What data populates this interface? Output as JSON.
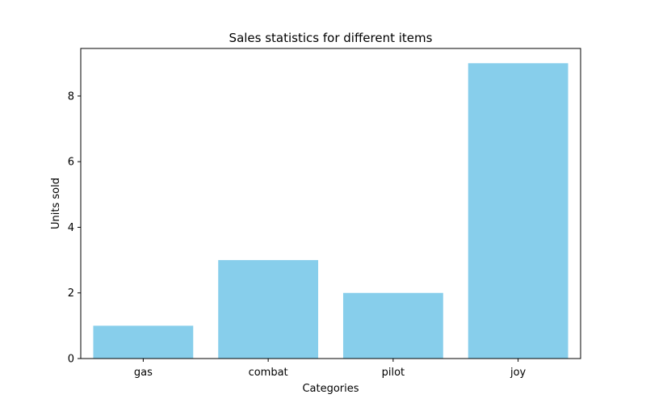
{
  "chart_data": {
    "type": "bar",
    "title": "Sales statistics for different items",
    "xlabel": "Categories",
    "ylabel": "Units sold",
    "categories": [
      "gas",
      "combat",
      "pilot",
      "joy"
    ],
    "values": [
      1,
      3,
      2,
      9
    ],
    "ylim": [
      0,
      9.45
    ],
    "yticks": [
      0,
      2,
      4,
      6,
      8
    ],
    "grid": false,
    "bar_color": "#87ceeb"
  }
}
